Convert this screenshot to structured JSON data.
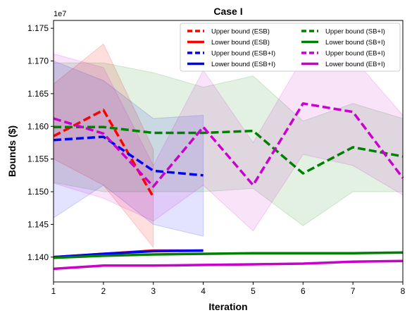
{
  "chart_data": {
    "type": "line",
    "title": "Case I",
    "xlabel": "Iteration",
    "ylabel": "Bounds ($)",
    "y_scale_label": "1e7",
    "xlim": [
      1,
      8
    ],
    "ylim": [
      11362000,
      11762000
    ],
    "x_ticks": [
      1,
      2,
      3,
      4,
      5,
      6,
      7,
      8
    ],
    "y_ticks": [
      11400000,
      11450000,
      11500000,
      11550000,
      11600000,
      11650000,
      11700000,
      11750000
    ],
    "y_tick_labels": [
      "1.140",
      "1.145",
      "1.150",
      "1.155",
      "1.160",
      "1.165",
      "1.170",
      "1.175"
    ],
    "grid": false,
    "legend_position": "top-right",
    "legend_columns": 2,
    "bands": [
      {
        "color": "#ff0000",
        "opacity": 0.13,
        "x": [
          1,
          2,
          3
        ],
        "lower": [
          11550000,
          11510000,
          11415000
        ],
        "upper": [
          11665000,
          11726000,
          11565000
        ]
      },
      {
        "color": "#0000ff",
        "opacity": 0.11,
        "x": [
          1,
          2,
          3,
          4
        ],
        "lower": [
          11460000,
          11510000,
          11450000,
          11432000
        ],
        "upper": [
          11700000,
          11670000,
          11612000,
          11617000
        ]
      },
      {
        "color": "#008000",
        "opacity": 0.11,
        "x": [
          1,
          2,
          3,
          4,
          5,
          6,
          7,
          8
        ],
        "lower": [
          11514000,
          11500000,
          11500000,
          11500000,
          11505000,
          11448000,
          11500000,
          11500000
        ],
        "upper": [
          11697000,
          11697000,
          11682000,
          11660000,
          11677000,
          11608000,
          11635000,
          11612000
        ]
      },
      {
        "color": "#cc00cc",
        "opacity": 0.11,
        "x": [
          1,
          2,
          3,
          4,
          5,
          6,
          7,
          8
        ],
        "lower": [
          11513000,
          11490000,
          11455000,
          11510000,
          11440000,
          11557000,
          11540000,
          11495000
        ],
        "upper": [
          11711000,
          11690000,
          11540000,
          11686000,
          11575000,
          11705000,
          11705000,
          11617000
        ]
      }
    ],
    "series": [
      {
        "name": "Upper bound (ESB)",
        "color": "#ff0000",
        "dash": true,
        "x": [
          1,
          2,
          3
        ],
        "values": [
          11585000,
          11625000,
          11492000
        ]
      },
      {
        "name": "Lower bound (ESB)",
        "color": "#ff0000",
        "dash": false,
        "x": [
          1,
          2,
          3,
          4
        ],
        "values": [
          11400000,
          11405000,
          11410000,
          11410000
        ]
      },
      {
        "name": "Upper bound (ESB+I)",
        "color": "#0000ff",
        "dash": true,
        "x": [
          1,
          2,
          3,
          4
        ],
        "values": [
          11579000,
          11584000,
          11532000,
          11525000
        ]
      },
      {
        "name": "Lower bound (ESB+I)",
        "color": "#0000ff",
        "dash": false,
        "x": [
          1,
          2,
          3,
          4
        ],
        "values": [
          11400000,
          11405000,
          11409000,
          11410000
        ]
      },
      {
        "name": "Upper bound (SB+I)",
        "color": "#008000",
        "dash": true,
        "x": [
          1,
          2,
          3,
          4,
          5,
          6,
          7,
          8
        ],
        "values": [
          11599000,
          11599000,
          11590000,
          11590000,
          11593000,
          11528000,
          11568000,
          11554000
        ]
      },
      {
        "name": "Lower bound (SB+I)",
        "color": "#008000",
        "dash": false,
        "x": [
          1,
          2,
          3,
          4,
          5,
          6,
          7,
          8
        ],
        "values": [
          11399000,
          11402000,
          11404000,
          11405000,
          11406000,
          11406000,
          11406000,
          11407000
        ]
      },
      {
        "name": "Upper bound (EB+I)",
        "color": "#cc00cc",
        "dash": true,
        "x": [
          1,
          2,
          3,
          4,
          5,
          6,
          7,
          8
        ],
        "values": [
          11612000,
          11589000,
          11508000,
          11599000,
          11510000,
          11635000,
          11622000,
          11521000
        ]
      },
      {
        "name": "Lower bound (EB+I)",
        "color": "#cc00cc",
        "dash": false,
        "x": [
          1,
          2,
          3,
          4,
          5,
          6,
          7,
          8
        ],
        "values": [
          11382000,
          11387000,
          11387000,
          11388000,
          11389000,
          11390000,
          11393000,
          11394000
        ]
      }
    ]
  }
}
